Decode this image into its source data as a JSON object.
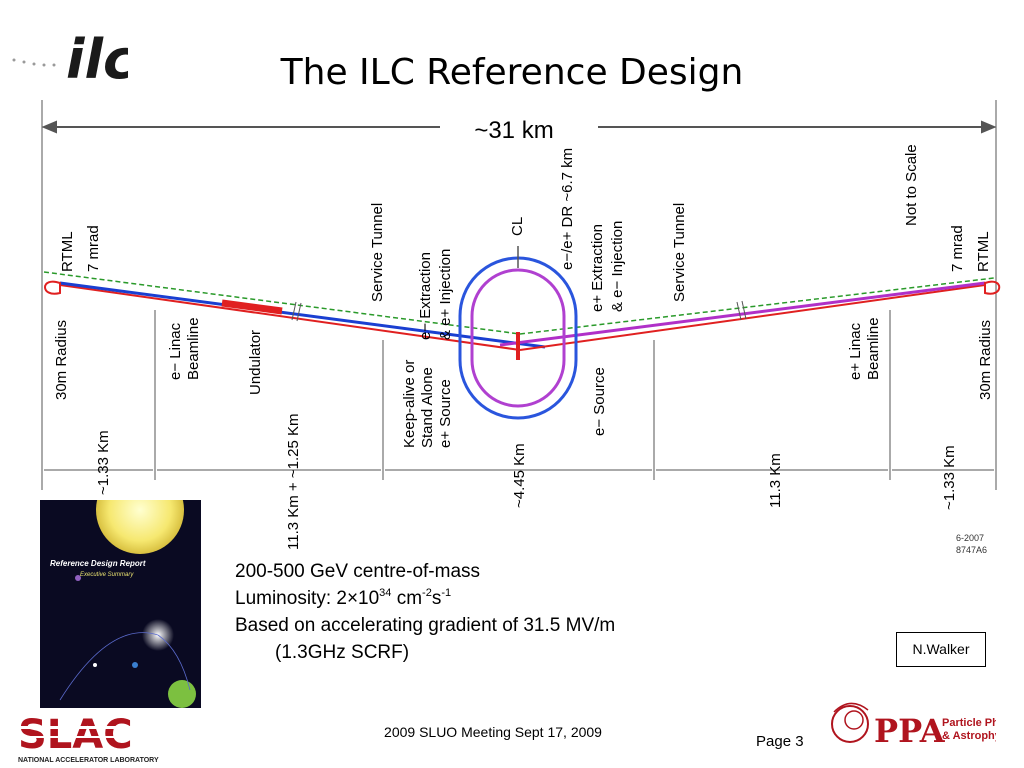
{
  "header": {
    "title": "The ILC Reference Design"
  },
  "diagram": {
    "total_length": "~31 km",
    "not_to_scale": "Not to Scale",
    "left_labels": [
      "30m Radius",
      "RTML",
      "7 mrad",
      "e− Linac",
      "Beamline",
      "Undulator",
      "Service Tunnel",
      "Keep-alive or",
      "Stand Alone",
      "e+ Source"
    ],
    "center_labels": [
      "e− Extraction",
      "& e+ Injection",
      "e−/e+ DR ~6.7 km",
      "CL",
      "e+ Extraction",
      "& e− Injection",
      "e− Source"
    ],
    "right_labels": [
      "Service Tunnel",
      "Not to Scale",
      "7 mrad",
      "RTML",
      "e+ Linac",
      "Beamline",
      "30m Radius"
    ],
    "dimensions": [
      "~1.33 Km",
      "11.3 Km + ~1.25 Km",
      "~4.45 Km",
      "11.3 Km",
      "~1.33 Km"
    ],
    "drawing_id": [
      "6-2007",
      "8747A6"
    ]
  },
  "bullets": {
    "energy": "200-500 GeV centre-of-mass",
    "lum_prefix": "Luminosity: 2×10",
    "lum_exp": "34",
    "lum_unit1": " cm",
    "lum_unit1_exp": "-2",
    "lum_unit2": "s",
    "lum_unit2_exp": "-1",
    "gradient": "Based on accelerating gradient of 31.5 MV/m",
    "gradient_cont": "(1.3GHz SCRF)"
  },
  "author_box": "N.Walker",
  "footer": {
    "meeting": "2009 SLUO Meeting Sept 17, 2009",
    "page": "Page 3"
  },
  "cover": {
    "line1": "Reference Design Report",
    "line2": "Executive Summary"
  },
  "logos": {
    "ilc": "ilc",
    "slac": "SLAC",
    "slac_sub": "NATIONAL ACCELERATOR LABORATORY",
    "ppa": "PPA",
    "ppa_sub1": "Particle Physics",
    "ppa_sub2": "& Astrophysics"
  },
  "colors": {
    "positron_beam": "#cc33cc",
    "electron_beam": "#1a3fd1",
    "linac_red": "#e02020",
    "damping_ring_outer": "#2a55dd",
    "damping_ring_inner": "#b040d0",
    "reference_line": "#2a9a2a"
  }
}
